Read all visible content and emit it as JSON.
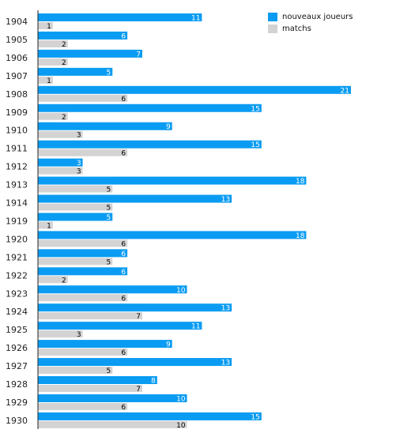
{
  "chart_data": {
    "type": "bar",
    "orientation": "horizontal",
    "categories": [
      "1904",
      "1905",
      "1906",
      "1907",
      "1908",
      "1909",
      "1910",
      "1911",
      "1912",
      "1913",
      "1914",
      "1919",
      "1920",
      "1921",
      "1922",
      "1923",
      "1924",
      "1925",
      "1926",
      "1927",
      "1928",
      "1929",
      "1930"
    ],
    "series": [
      {
        "name": "nouveaux joueurs",
        "color": "#0a9cf2",
        "values": [
          11,
          6,
          7,
          5,
          21,
          15,
          9,
          15,
          3,
          18,
          13,
          5,
          18,
          6,
          6,
          10,
          13,
          11,
          9,
          13,
          8,
          10,
          15
        ]
      },
      {
        "name": "matchs",
        "color": "#d3d3d3",
        "values": [
          1,
          2,
          2,
          1,
          6,
          2,
          3,
          6,
          3,
          5,
          5,
          1,
          6,
          5,
          2,
          6,
          7,
          3,
          6,
          5,
          7,
          6,
          10
        ]
      }
    ],
    "title": "",
    "xlabel": "",
    "ylabel": "",
    "xlim": [
      0,
      21
    ],
    "grid": false,
    "legend_position": "top-right"
  }
}
